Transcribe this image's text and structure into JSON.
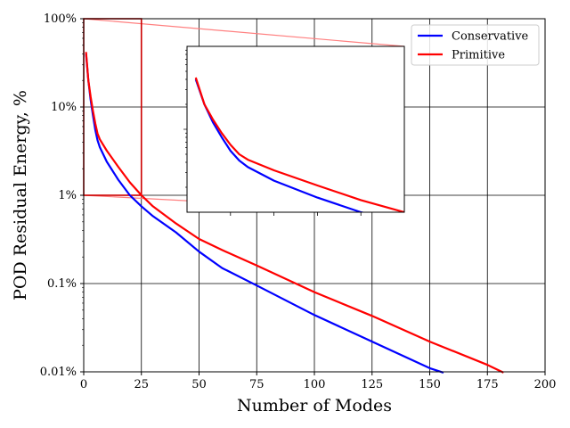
{
  "chart_data": {
    "type": "line",
    "xlabel": "Number of Modes",
    "ylabel": "POD Residual Energy, %",
    "xlim": [
      0,
      200
    ],
    "ylim": [
      0.01,
      100
    ],
    "yscale": "log",
    "grid": true,
    "legend_position": "top-right",
    "x_ticks": [
      "0",
      "25",
      "50",
      "75",
      "100",
      "125",
      "150",
      "175",
      "200"
    ],
    "y_ticks": [
      "0.01%",
      "0.1%",
      "1%",
      "10%",
      "100%"
    ],
    "series": [
      {
        "name": "Conservative",
        "color": "#0000ff",
        "x": [
          1,
          2,
          3,
          4,
          5,
          6,
          7,
          10,
          15,
          20,
          25,
          30,
          40,
          50,
          60,
          75,
          100,
          125,
          150,
          156
        ],
        "y": [
          40,
          20,
          12,
          8,
          5.5,
          4.2,
          3.5,
          2.4,
          1.5,
          1.0,
          0.75,
          0.58,
          0.38,
          0.23,
          0.15,
          0.095,
          0.044,
          0.022,
          0.011,
          0.0098
        ]
      },
      {
        "name": "Primitive",
        "color": "#ff0000",
        "x": [
          1,
          2,
          3,
          4,
          5,
          6,
          7,
          10,
          15,
          20,
          25,
          30,
          40,
          50,
          60,
          75,
          100,
          125,
          150,
          175,
          182
        ],
        "y": [
          42,
          20,
          13,
          9,
          6.5,
          5,
          4.3,
          3.2,
          2.1,
          1.4,
          1.0,
          0.75,
          0.48,
          0.32,
          0.24,
          0.16,
          0.08,
          0.043,
          0.022,
          0.012,
          0.0098
        ]
      }
    ],
    "zoom_box": {
      "x": [
        0,
        25
      ],
      "y": [
        1,
        100
      ]
    },
    "inset": {
      "xlim": [
        0,
        25
      ],
      "ylim": [
        1,
        100
      ],
      "yscale": "log"
    }
  }
}
